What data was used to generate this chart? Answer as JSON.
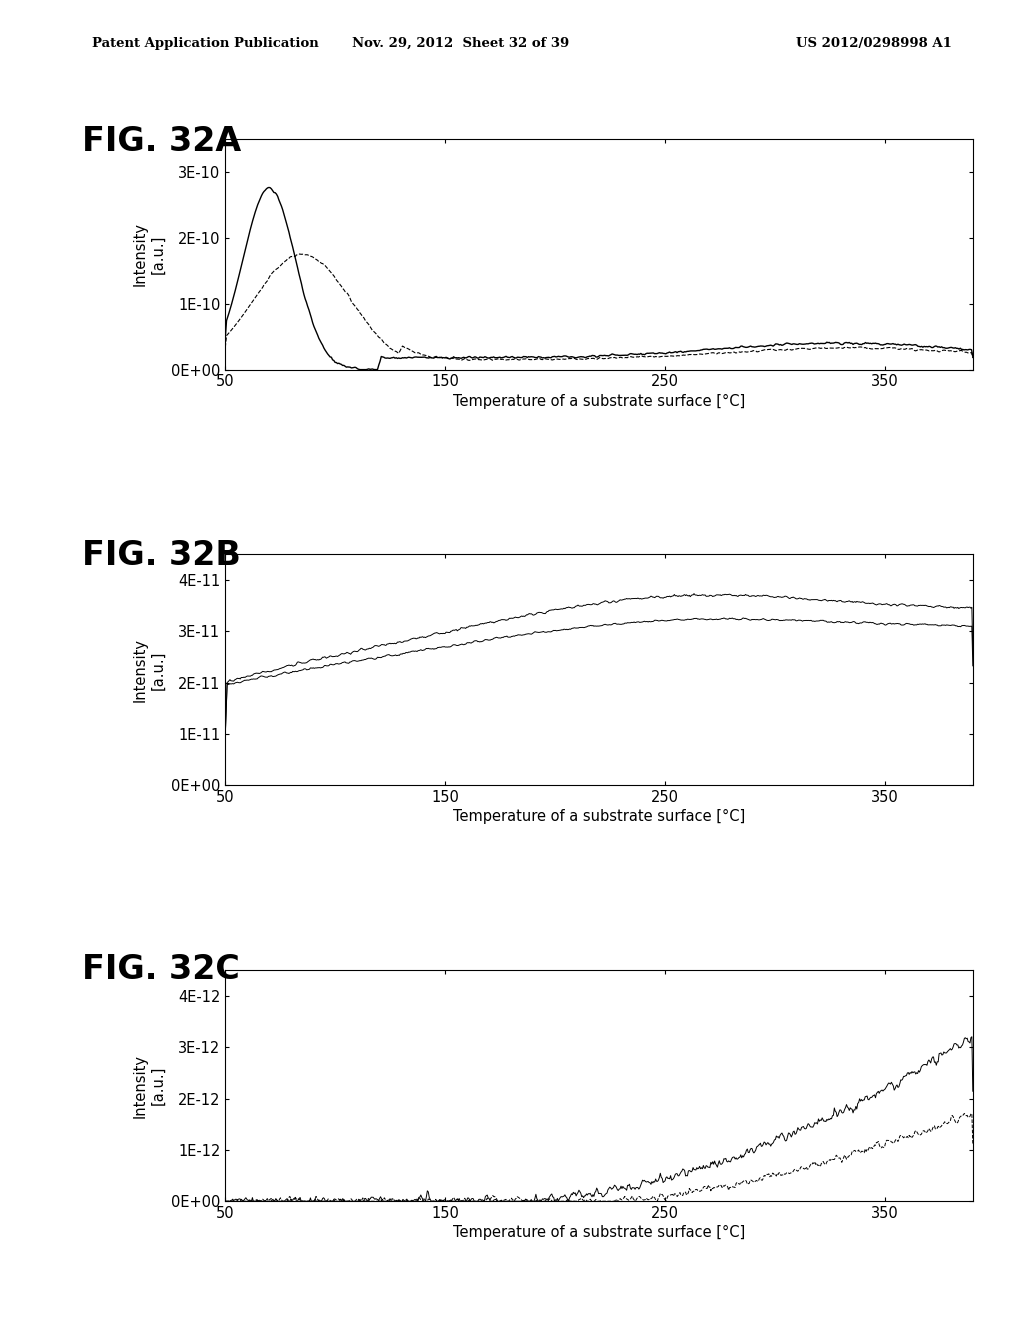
{
  "header_left": "Patent Application Publication",
  "header_mid": "Nov. 29, 2012  Sheet 32 of 39",
  "header_right": "US 2012/0298998 A1",
  "fig_labels": [
    "FIG. 32A",
    "FIG. 32B",
    "FIG. 32C"
  ],
  "xlabel": "Temperature of a substrate surface [°C]",
  "ylabel": "Intensity [a.u.]",
  "x_ticks": [
    50,
    150,
    250,
    350
  ],
  "xlim": [
    50,
    390
  ],
  "subplot_A": {
    "ylim": [
      0,
      3.5e-10
    ],
    "yticks": [
      0,
      1e-10,
      2e-10,
      3e-10
    ],
    "ytick_labels": [
      "0E+00",
      "1E-10",
      "2E-10",
      "3E-10"
    ]
  },
  "subplot_B": {
    "ylim": [
      0,
      4.5e-11
    ],
    "yticks": [
      0,
      1e-11,
      2e-11,
      3e-11,
      4e-11
    ],
    "ytick_labels": [
      "0E+00",
      "1E-11",
      "2E-11",
      "3E-11",
      "4E-11"
    ]
  },
  "subplot_C": {
    "ylim": [
      0,
      4.5e-12
    ],
    "yticks": [
      0,
      1e-12,
      2e-12,
      3e-12,
      4e-12
    ],
    "ytick_labels": [
      "0E+00",
      "1E-12",
      "2E-12",
      "3E-12",
      "4E-12"
    ]
  },
  "bg_color": "#ffffff",
  "line_color": "#000000"
}
